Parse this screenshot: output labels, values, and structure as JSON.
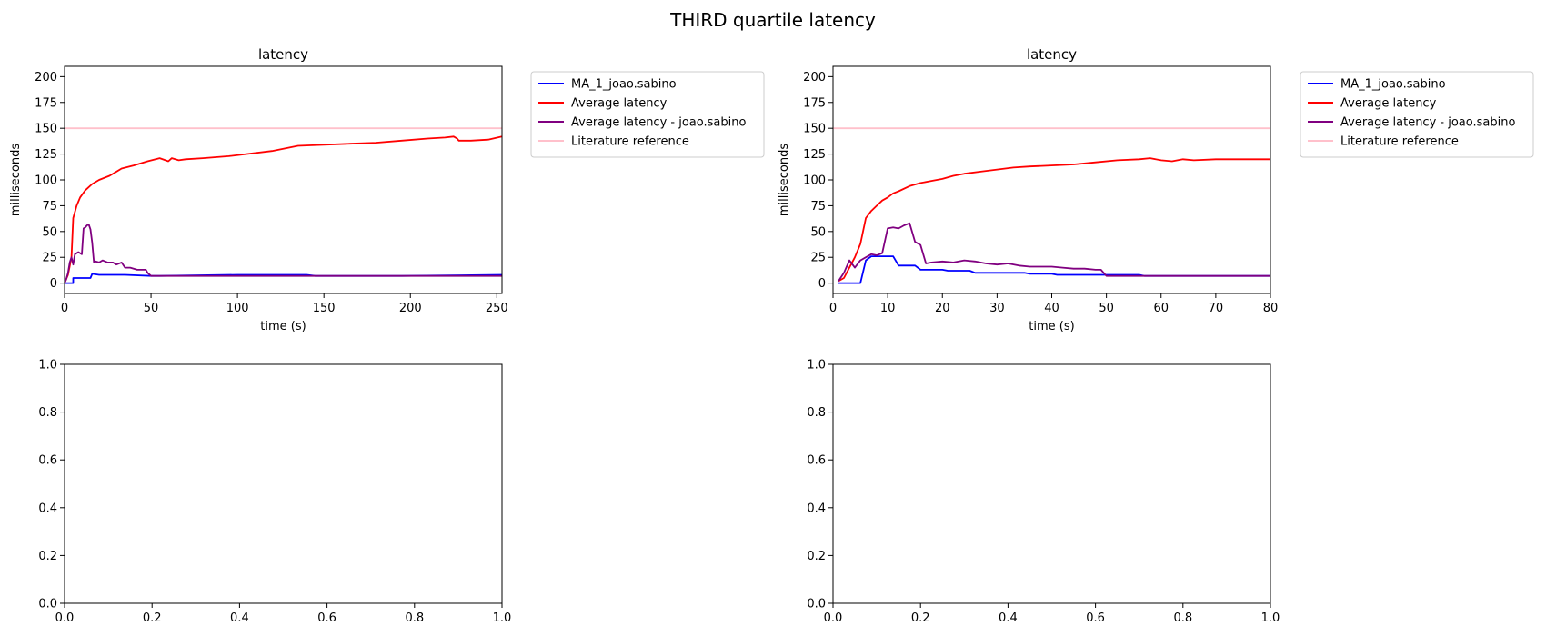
{
  "figure": {
    "suptitle": "THIRD quartile latency"
  },
  "chart_data": [
    {
      "type": "line",
      "title": "latency",
      "xlabel": "time (s)",
      "ylabel": "milliseconds",
      "xlim": [
        0,
        253
      ],
      "ylim": [
        -10,
        210
      ],
      "xticks": [
        0,
        50,
        100,
        150,
        200,
        250
      ],
      "yticks": [
        0,
        25,
        50,
        75,
        100,
        125,
        150,
        175,
        200
      ],
      "grid": false,
      "legend": "outside-right",
      "series": [
        {
          "name": "MA_1_joao.sabino",
          "color": "#0000ff",
          "x": [
            0,
            5,
            5,
            15,
            16,
            20,
            35,
            50,
            55,
            100,
            140,
            145,
            195,
            253
          ],
          "y": [
            0,
            0,
            5,
            5,
            9,
            8,
            8,
            7,
            7,
            8,
            8,
            7,
            7,
            8
          ]
        },
        {
          "name": "Average latency",
          "color": "#ff0000",
          "x": [
            0,
            2,
            4,
            5,
            7,
            9,
            12,
            16,
            20,
            26,
            33,
            40,
            48,
            55,
            60,
            62,
            66,
            70,
            80,
            95,
            105,
            120,
            135,
            150,
            165,
            180,
            195,
            210,
            220,
            225,
            227,
            228,
            235,
            245,
            253
          ],
          "y": [
            0,
            8,
            25,
            63,
            75,
            83,
            90,
            96,
            100,
            104,
            111,
            114,
            118,
            121,
            118,
            121,
            119,
            120,
            121,
            123,
            125,
            128,
            133,
            134,
            135,
            136,
            138,
            140,
            141,
            142,
            140,
            138,
            138,
            139,
            142
          ]
        },
        {
          "name": "Average latency - joao.sabino",
          "color": "#800080",
          "x": [
            0,
            1,
            2,
            3,
            4,
            5,
            6,
            8,
            10,
            11,
            12,
            13,
            14,
            15,
            16,
            17,
            18,
            20,
            22,
            25,
            28,
            30,
            33,
            35,
            38,
            42,
            47,
            48,
            50,
            52,
            100,
            200,
            253
          ],
          "y": [
            0,
            4,
            10,
            20,
            25,
            18,
            28,
            30,
            28,
            53,
            54,
            56,
            57,
            52,
            39,
            20,
            21,
            20,
            22,
            20,
            20,
            18,
            20,
            15,
            15,
            13,
            13,
            10,
            7,
            7,
            7,
            7,
            7
          ]
        },
        {
          "name": "Literature reference",
          "color": "#ffc0cb",
          "x": [
            0,
            253
          ],
          "y": [
            150,
            150
          ]
        }
      ]
    },
    {
      "type": "line",
      "title": "latency",
      "xlabel": "time (s)",
      "ylabel": "milliseconds",
      "xlim": [
        0,
        80
      ],
      "ylim": [
        -10,
        210
      ],
      "xticks": [
        0,
        10,
        20,
        30,
        40,
        50,
        60,
        70,
        80
      ],
      "yticks": [
        0,
        25,
        50,
        75,
        100,
        125,
        150,
        175,
        200
      ],
      "grid": false,
      "legend": "outside-right",
      "series": [
        {
          "name": "MA_1_joao.sabino",
          "color": "#0000ff",
          "x": [
            1,
            5,
            6,
            7,
            11,
            12,
            15,
            16,
            20,
            21,
            25,
            26,
            35,
            36,
            40,
            41,
            48,
            49,
            56,
            57,
            60,
            80
          ],
          "y": [
            0,
            0,
            22,
            26,
            26,
            17,
            17,
            13,
            13,
            12,
            12,
            10,
            10,
            9,
            9,
            8,
            8,
            8,
            8,
            7,
            7,
            7
          ]
        },
        {
          "name": "Average latency",
          "color": "#ff0000",
          "x": [
            1,
            2,
            3,
            4,
            5,
            6,
            7,
            8,
            9,
            10,
            11,
            12,
            14,
            16,
            18,
            20,
            22,
            24,
            27,
            30,
            33,
            36,
            40,
            44,
            48,
            52,
            56,
            58,
            60,
            62,
            64,
            66,
            70,
            74,
            78,
            80
          ],
          "y": [
            2,
            5,
            15,
            25,
            38,
            63,
            70,
            75,
            80,
            83,
            87,
            89,
            94,
            97,
            99,
            101,
            104,
            106,
            108,
            110,
            112,
            113,
            114,
            115,
            117,
            119,
            120,
            121,
            119,
            118,
            120,
            119,
            120,
            120,
            120,
            120
          ]
        },
        {
          "name": "Average latency - joao.sabino",
          "color": "#800080",
          "x": [
            1,
            2,
            3,
            4,
            5,
            6,
            7,
            8,
            9,
            10,
            11,
            12,
            13,
            14,
            15,
            16,
            17,
            18,
            20,
            22,
            24,
            26,
            28,
            30,
            32,
            34,
            36,
            38,
            40,
            42,
            44,
            46,
            48,
            49,
            50,
            55,
            80
          ],
          "y": [
            2,
            10,
            22,
            15,
            22,
            25,
            28,
            27,
            29,
            53,
            54,
            53,
            56,
            58,
            40,
            37,
            19,
            20,
            21,
            20,
            22,
            21,
            19,
            18,
            19,
            17,
            16,
            16,
            16,
            15,
            14,
            14,
            13,
            13,
            7,
            7,
            7
          ]
        },
        {
          "name": "Literature reference",
          "color": "#ffc0cb",
          "x": [
            0,
            80
          ],
          "y": [
            150,
            150
          ]
        }
      ]
    },
    {
      "type": "line",
      "title": "",
      "xlim": [
        0,
        1
      ],
      "ylim": [
        0,
        1
      ],
      "xticks": [
        "0.0",
        "0.2",
        "0.4",
        "0.6",
        "0.8",
        "1.0"
      ],
      "yticks": [
        "0.0",
        "0.2",
        "0.4",
        "0.6",
        "0.8",
        "1.0"
      ],
      "series": []
    },
    {
      "type": "line",
      "title": "",
      "xlim": [
        0,
        1
      ],
      "ylim": [
        0,
        1
      ],
      "xticks": [
        "0.0",
        "0.2",
        "0.4",
        "0.6",
        "0.8",
        "1.0"
      ],
      "yticks": [
        "0.0",
        "0.2",
        "0.4",
        "0.6",
        "0.8",
        "1.0"
      ],
      "series": []
    }
  ]
}
